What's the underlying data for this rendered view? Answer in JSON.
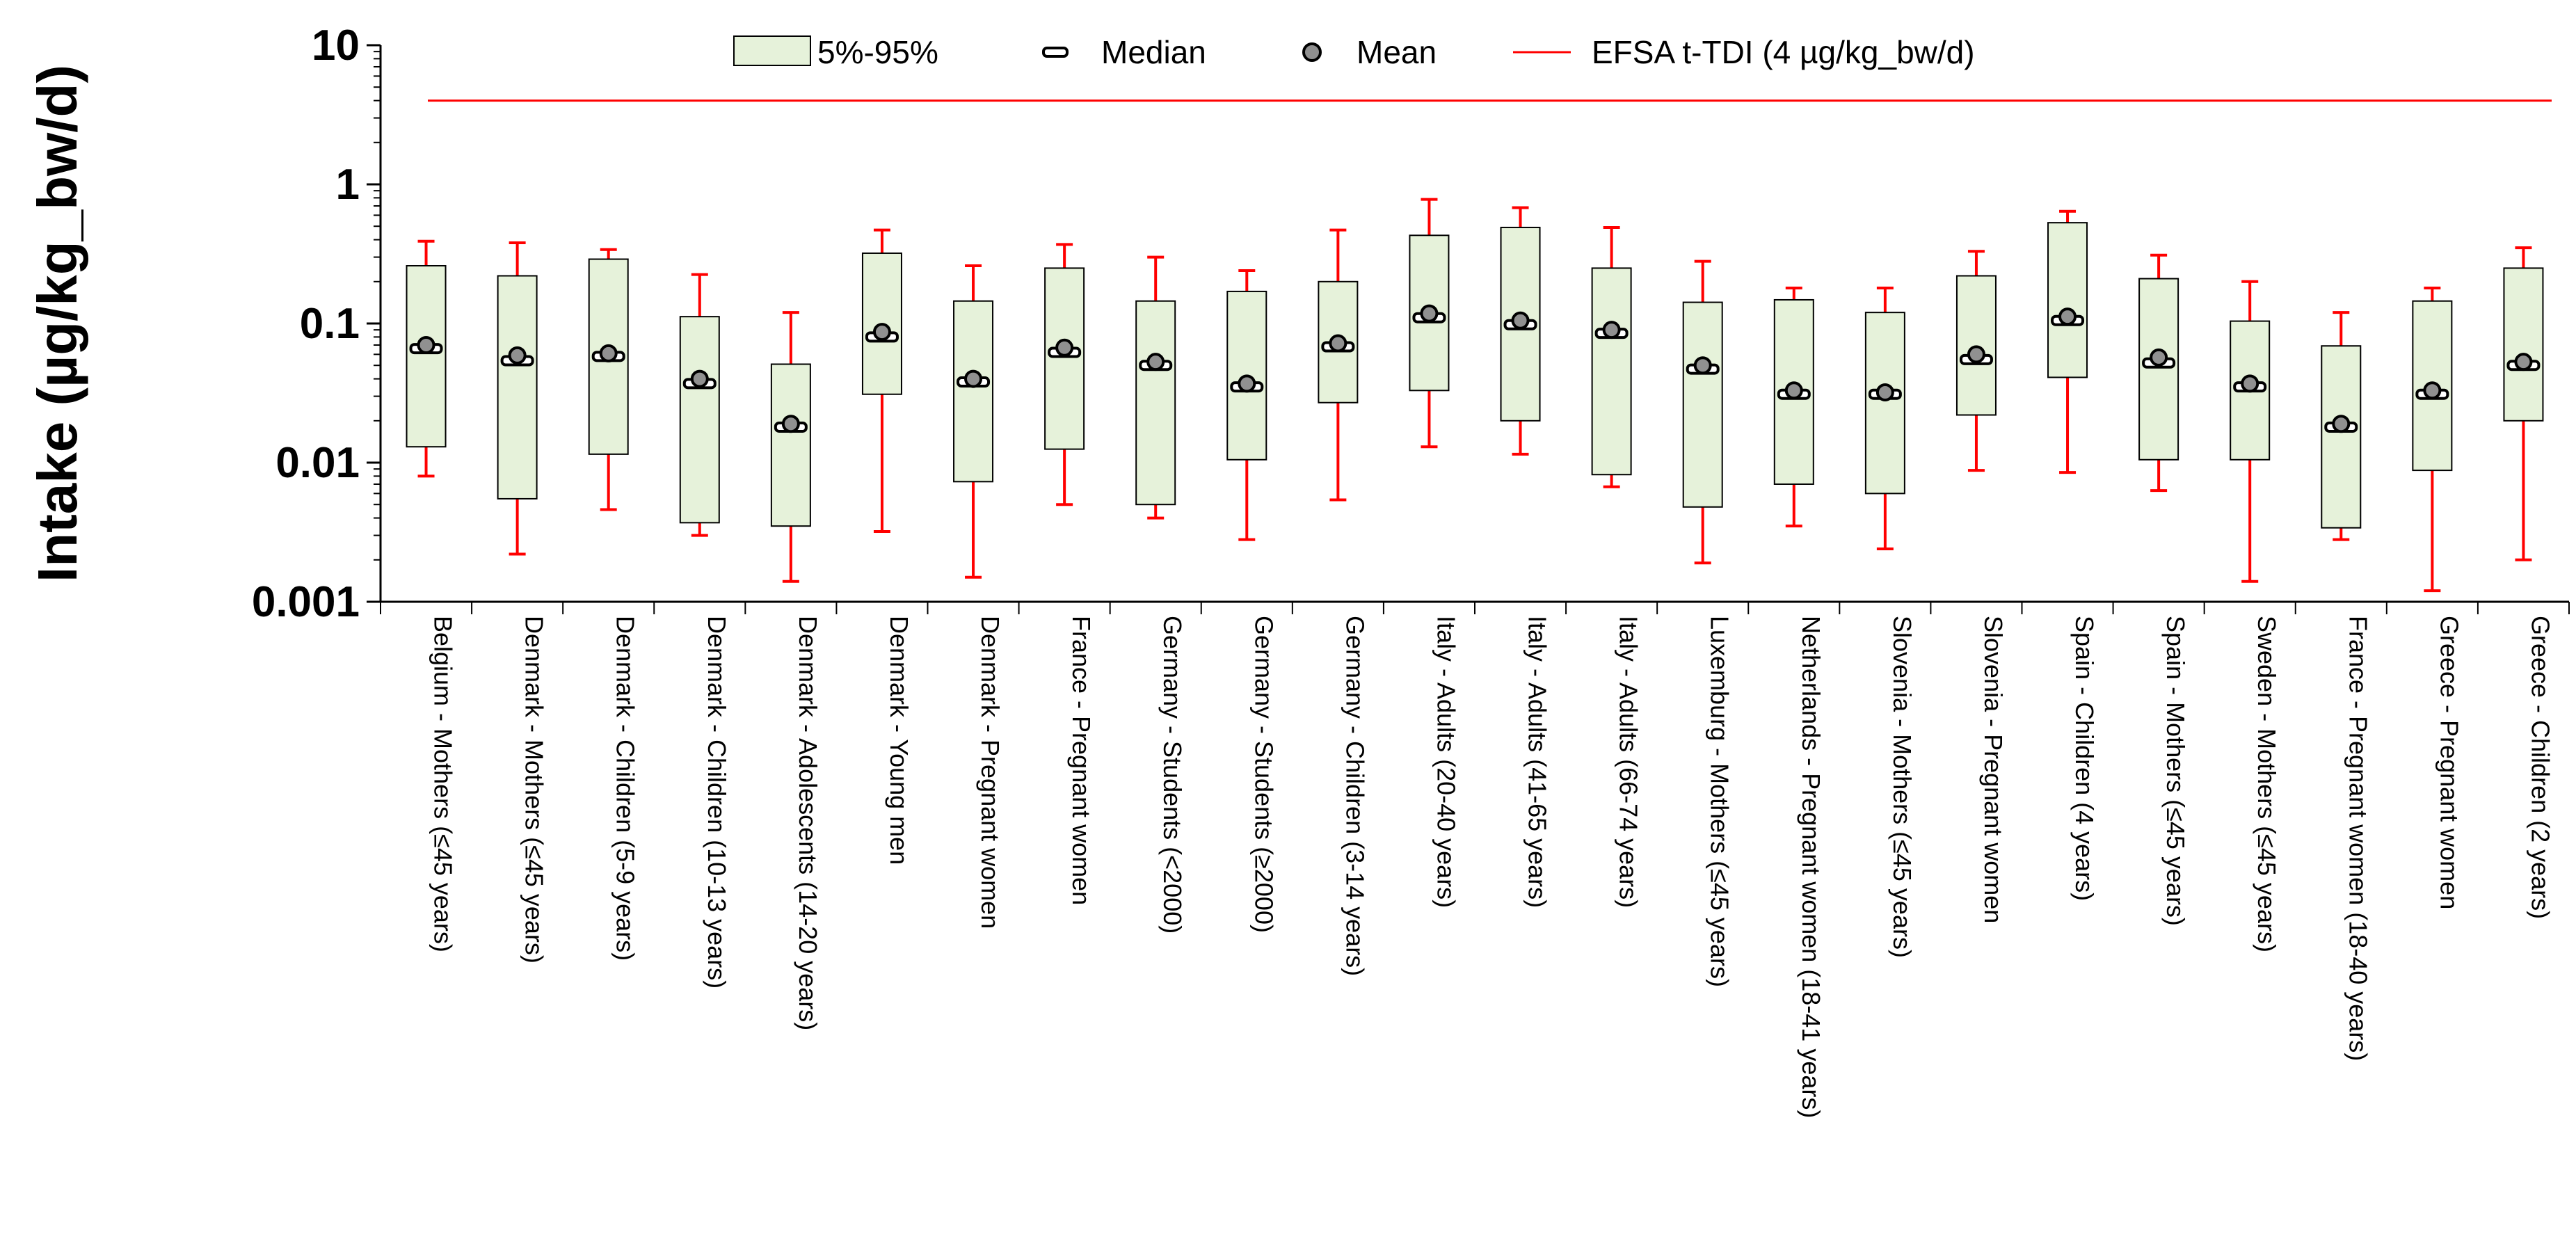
{
  "chart_data": {
    "type": "box",
    "title": "",
    "xlabel": "",
    "ylabel": "Intake (µg/kg_bw/d)",
    "yscale": "log",
    "ylim": [
      0.001,
      10
    ],
    "yticks": [
      0.001,
      0.01,
      0.1,
      1,
      10
    ],
    "ytick_labels": [
      "0.001",
      "0.01",
      "0.1",
      "1",
      "10"
    ],
    "legend": {
      "placement": "top",
      "items": [
        {
          "key": "range",
          "label": "5%-95%"
        },
        {
          "key": "median",
          "label": "Median"
        },
        {
          "key": "mean",
          "label": "Mean"
        },
        {
          "key": "reference",
          "label": "EFSA t-TDI (4 µg/kg_bw/d)"
        }
      ]
    },
    "reference_line": {
      "label": "EFSA t-TDI (4 µg/kg_bw/d)",
      "value": 4,
      "color": "#ff0000"
    },
    "colors": {
      "box_fill": "#e6f2da",
      "box_edge": "#000000",
      "whisker": "#ff0000",
      "median": "#000000",
      "mean_fill": "#909090"
    },
    "categories": [
      "Belgium - Mothers (≤45 years)",
      "Denmark - Mothers (≤45 years)",
      "Denmark - Children (5-9 years)",
      "Denmark - Children (10-13 years)",
      "Denmark - Adolescents (14-20 years)",
      "Denmark - Young men",
      "Denmark - Pregnant women",
      "France - Pregnant women",
      "Germany - Students (<2000)",
      "Germany - Students (≥2000)",
      "Germany - Children (3-14 years)",
      "Italy - Adults (20-40 years)",
      "Italy - Adults (41-65 years)",
      "Italy - Adults (66-74 years)",
      "Luxemburg - Mothers (≤45 years)",
      "Netherlands - Pregnant women (18-41 years)",
      "Slovenia - Mothers (≤45 years)",
      "Slovenia - Pregnant women",
      "Spain - Children (4 years)",
      "Spain - Mothers (≤45 years)",
      "Sweden - Mothers (≤45 years)",
      "France - Pregnant women (18-40 years)",
      "Greece - Pregnant women",
      "Greece - Children (2 years)"
    ],
    "series": [
      {
        "name": "min",
        "values": [
          0.008,
          0.0022,
          0.0046,
          0.003,
          0.0014,
          0.0032,
          0.0015,
          0.005,
          0.004,
          0.0028,
          0.0054,
          0.013,
          0.0115,
          0.0067,
          0.0019,
          0.0035,
          0.0024,
          0.0088,
          0.0085,
          0.0063,
          0.0014,
          0.0028,
          0.0012,
          0.002
        ]
      },
      {
        "name": "p5",
        "values": [
          0.013,
          0.0055,
          0.0115,
          0.0037,
          0.0035,
          0.031,
          0.0073,
          0.0125,
          0.005,
          0.0105,
          0.027,
          0.033,
          0.02,
          0.0082,
          0.0048,
          0.007,
          0.006,
          0.022,
          0.041,
          0.0105,
          0.0105,
          0.0034,
          0.0088,
          0.02
        ]
      },
      {
        "name": "median",
        "values": [
          0.066,
          0.054,
          0.058,
          0.037,
          0.018,
          0.08,
          0.038,
          0.062,
          0.05,
          0.035,
          0.068,
          0.11,
          0.098,
          0.085,
          0.047,
          0.031,
          0.031,
          0.055,
          0.105,
          0.052,
          0.035,
          0.018,
          0.031,
          0.05
        ]
      },
      {
        "name": "mean",
        "values": [
          0.07,
          0.059,
          0.061,
          0.04,
          0.019,
          0.087,
          0.04,
          0.067,
          0.053,
          0.037,
          0.072,
          0.118,
          0.105,
          0.09,
          0.05,
          0.033,
          0.032,
          0.06,
          0.112,
          0.057,
          0.037,
          0.019,
          0.033,
          0.053
        ]
      },
      {
        "name": "p95",
        "values": [
          0.26,
          0.22,
          0.29,
          0.112,
          0.051,
          0.32,
          0.145,
          0.25,
          0.145,
          0.17,
          0.2,
          0.43,
          0.49,
          0.25,
          0.142,
          0.148,
          0.12,
          0.22,
          0.53,
          0.21,
          0.104,
          0.069,
          0.145,
          0.25
        ]
      },
      {
        "name": "max",
        "values": [
          0.39,
          0.38,
          0.34,
          0.225,
          0.12,
          0.47,
          0.26,
          0.37,
          0.3,
          0.24,
          0.47,
          0.78,
          0.68,
          0.49,
          0.28,
          0.18,
          0.18,
          0.33,
          0.64,
          0.31,
          0.2,
          0.12,
          0.18,
          0.35
        ]
      }
    ]
  }
}
